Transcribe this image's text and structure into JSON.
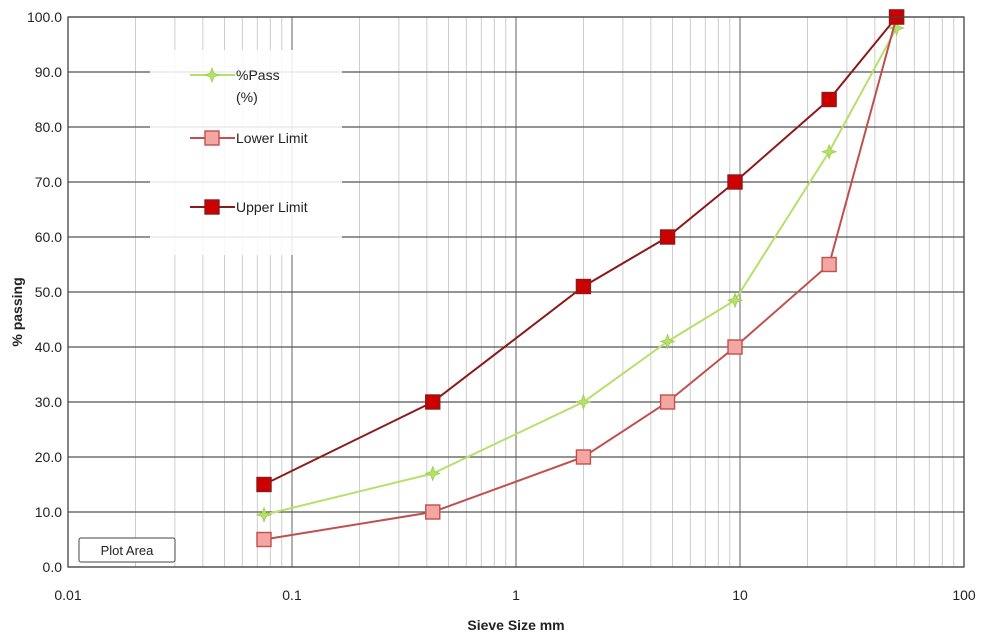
{
  "chart_data": {
    "type": "line",
    "x_scale": "log",
    "xlabel": "Sieve Size mm",
    "ylabel": "% passing",
    "xlim": [
      0.01,
      100
    ],
    "ylim": [
      0,
      100
    ],
    "x_tick_labels": [
      "0.01",
      "0.1",
      "1",
      "10",
      "100"
    ],
    "y_tick_labels": [
      "0.0",
      "10.0",
      "20.0",
      "30.0",
      "40.0",
      "50.0",
      "60.0",
      "70.0",
      "80.0",
      "90.0",
      "100.0"
    ],
    "grid": true,
    "legend_position": "top-left",
    "annotation": "Plot Area",
    "series": [
      {
        "name": "%Pass (%)",
        "legend_lines": [
          "%Pass",
          "(%)"
        ],
        "marker": "star",
        "color": "#b5e06a",
        "x": [
          0.075,
          0.425,
          2,
          4.75,
          9.5,
          25,
          50
        ],
        "y": [
          9.5,
          17,
          30,
          41,
          48.5,
          75.5,
          98
        ]
      },
      {
        "name": "Lower Limit",
        "legend_lines": [
          "Lower Limit"
        ],
        "marker": "square",
        "color": "#c0504d",
        "marker_fill": "#f4a6a3",
        "x": [
          0.075,
          0.425,
          2,
          4.75,
          9.5,
          25,
          50
        ],
        "y": [
          5,
          10,
          20,
          30,
          40,
          55,
          100
        ]
      },
      {
        "name": "Upper Limit",
        "legend_lines": [
          "Upper Limit"
        ],
        "marker": "square",
        "color": "#8b1a1a",
        "marker_fill": "#cc0000",
        "x": [
          0.075,
          0.425,
          2,
          4.75,
          9.5,
          25,
          50
        ],
        "y": [
          15,
          30,
          51,
          60,
          70,
          85,
          100
        ]
      }
    ]
  }
}
